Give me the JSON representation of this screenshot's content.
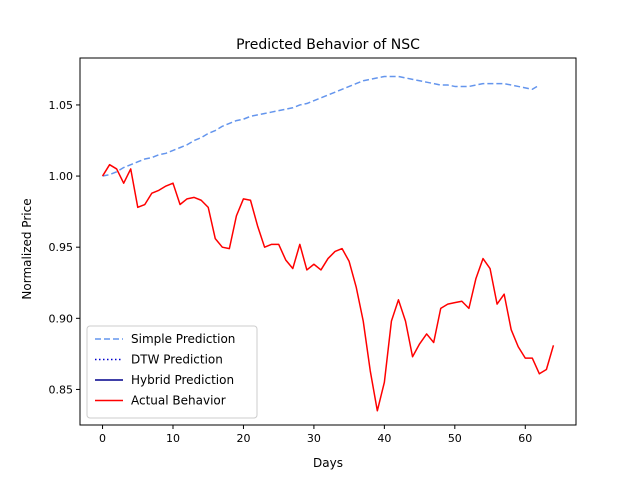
{
  "chart_data": {
    "type": "line",
    "title": "Predicted Behavior of NSC",
    "xlabel": "Days",
    "ylabel": "Normalized Price",
    "xlim": [
      -3.2,
      67.2
    ],
    "ylim": [
      0.825,
      1.083
    ],
    "xticks": [
      0,
      10,
      20,
      30,
      40,
      50,
      60
    ],
    "yticks": [
      0.85,
      0.9,
      0.95,
      1.0,
      1.05
    ],
    "ytick_labels": [
      "0.85",
      "0.90",
      "0.95",
      "1.00",
      "1.05"
    ],
    "grid": false,
    "legend_position": "lower-left",
    "series": [
      {
        "name": "Simple Prediction",
        "color": "#6495ed",
        "style": "dashed",
        "x": [
          0,
          1,
          2,
          3,
          4,
          5,
          6,
          7,
          8,
          9,
          10,
          11,
          12,
          13,
          14,
          15,
          16,
          17,
          18,
          19,
          20,
          21,
          22,
          23,
          24,
          25,
          26,
          27,
          28,
          29,
          30,
          31,
          32,
          33,
          34,
          35,
          36,
          37,
          38,
          39,
          40,
          41,
          42,
          43,
          44,
          45,
          46,
          47,
          48,
          49,
          50,
          51,
          52,
          53,
          54,
          55,
          56,
          57,
          58,
          59,
          60,
          61,
          62
        ],
        "y": [
          1.0,
          1.001,
          1.003,
          1.006,
          1.008,
          1.01,
          1.012,
          1.013,
          1.015,
          1.016,
          1.018,
          1.02,
          1.022,
          1.025,
          1.027,
          1.03,
          1.032,
          1.035,
          1.037,
          1.039,
          1.04,
          1.042,
          1.043,
          1.044,
          1.045,
          1.046,
          1.047,
          1.048,
          1.05,
          1.051,
          1.053,
          1.055,
          1.057,
          1.059,
          1.061,
          1.063,
          1.065,
          1.067,
          1.068,
          1.069,
          1.07,
          1.07,
          1.07,
          1.069,
          1.068,
          1.067,
          1.066,
          1.065,
          1.064,
          1.064,
          1.063,
          1.063,
          1.063,
          1.064,
          1.065,
          1.065,
          1.065,
          1.065,
          1.064,
          1.063,
          1.062,
          1.061,
          1.064
        ]
      },
      {
        "name": "DTW Prediction",
        "color": "#0000cd",
        "style": "dotted",
        "x": [],
        "y": []
      },
      {
        "name": "Hybrid Prediction",
        "color": "#00008b",
        "style": "solid",
        "x": [],
        "y": []
      },
      {
        "name": "Actual Behavior",
        "color": "#ff0000",
        "style": "solid",
        "x": [
          0,
          1,
          2,
          3,
          4,
          5,
          6,
          7,
          8,
          9,
          10,
          11,
          12,
          13,
          14,
          15,
          16,
          17,
          18,
          19,
          20,
          21,
          22,
          23,
          24,
          25,
          26,
          27,
          28,
          29,
          30,
          31,
          32,
          33,
          34,
          35,
          36,
          37,
          38,
          39,
          40,
          41,
          42,
          43,
          44,
          45,
          46,
          47,
          48,
          49,
          50,
          51,
          52,
          53,
          54,
          55,
          56,
          57,
          58,
          59,
          60,
          61,
          62,
          63,
          64
        ],
        "y": [
          1.0,
          1.008,
          1.005,
          0.995,
          1.005,
          0.978,
          0.98,
          0.988,
          0.99,
          0.993,
          0.995,
          0.98,
          0.984,
          0.985,
          0.983,
          0.978,
          0.956,
          0.95,
          0.949,
          0.972,
          0.984,
          0.983,
          0.965,
          0.95,
          0.952,
          0.952,
          0.941,
          0.935,
          0.952,
          0.934,
          0.938,
          0.934,
          0.942,
          0.947,
          0.949,
          0.94,
          0.922,
          0.898,
          0.863,
          0.835,
          0.855,
          0.898,
          0.913,
          0.898,
          0.873,
          0.882,
          0.889,
          0.883,
          0.907,
          0.91,
          0.911,
          0.912,
          0.907,
          0.928,
          0.942,
          0.935,
          0.91,
          0.917,
          0.892,
          0.88,
          0.872,
          0.872,
          0.861,
          0.864,
          0.881
        ]
      }
    ]
  }
}
